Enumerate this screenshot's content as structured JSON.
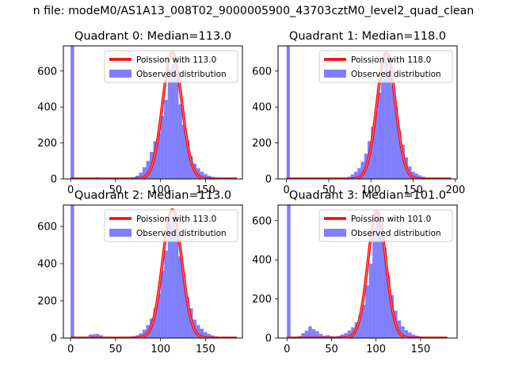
{
  "suptitle": "n file: modeM0/AS1A13_008T02_9000005900_43703cztM0_level2_quad_clean",
  "colors": {
    "poisson": "#ff0000",
    "observed": "#0000ff",
    "axes": "#000000"
  },
  "chart_data": [
    {
      "type": "bar",
      "title": "Quadrant 0: Median=113.0",
      "xlim": [
        -8,
        191
      ],
      "ylim": [
        0,
        740
      ],
      "xticks": [
        0,
        50,
        100,
        150
      ],
      "yticks": [
        0,
        200,
        400,
        600
      ],
      "legend": {
        "placement": "top-right",
        "entries": [
          "Poission with 113.0",
          "Observed distribution"
        ]
      },
      "observed": {
        "name": "Observed distribution",
        "bin_width": 4,
        "bins": [
          [
            0,
            740
          ],
          [
            28,
            10
          ],
          [
            68,
            10
          ],
          [
            72,
            18
          ],
          [
            76,
            35
          ],
          [
            80,
            65
          ],
          [
            84,
            100
          ],
          [
            88,
            150
          ],
          [
            92,
            210
          ],
          [
            96,
            255
          ],
          [
            100,
            350
          ],
          [
            104,
            440
          ],
          [
            108,
            615
          ],
          [
            112,
            640
          ],
          [
            116,
            560
          ],
          [
            120,
            415
          ],
          [
            124,
            300
          ],
          [
            128,
            215
          ],
          [
            132,
            125
          ],
          [
            136,
            85
          ],
          [
            140,
            60
          ],
          [
            144,
            40
          ],
          [
            148,
            28
          ],
          [
            152,
            18
          ],
          [
            156,
            12
          ],
          [
            160,
            8
          ],
          [
            164,
            5
          ],
          [
            168,
            3
          ]
        ]
      },
      "poisson": {
        "name": "Poission with 113.0",
        "mean": 113.0,
        "peak": 705,
        "x_range": [
          0,
          185
        ]
      }
    },
    {
      "type": "bar",
      "title": "Quadrant 1: Median=118.0",
      "xlim": [
        -10,
        202
      ],
      "ylim": [
        0,
        740
      ],
      "xticks": [
        0,
        50,
        100,
        150,
        200
      ],
      "yticks": [
        0,
        200,
        400,
        600
      ],
      "legend": {
        "placement": "top-right",
        "entries": [
          "Poission with 118.0",
          "Observed distribution"
        ]
      },
      "observed": {
        "name": "Observed distribution",
        "bin_width": 4,
        "bins": [
          [
            0,
            740
          ],
          [
            72,
            12
          ],
          [
            76,
            25
          ],
          [
            80,
            40
          ],
          [
            84,
            60
          ],
          [
            88,
            95
          ],
          [
            92,
            140
          ],
          [
            96,
            210
          ],
          [
            100,
            290
          ],
          [
            104,
            380
          ],
          [
            108,
            480
          ],
          [
            112,
            560
          ],
          [
            116,
            670
          ],
          [
            120,
            600
          ],
          [
            124,
            520
          ],
          [
            128,
            400
          ],
          [
            132,
            270
          ],
          [
            136,
            190
          ],
          [
            140,
            120
          ],
          [
            144,
            70
          ],
          [
            148,
            40
          ],
          [
            152,
            30
          ],
          [
            156,
            20
          ],
          [
            160,
            12
          ],
          [
            164,
            7
          ],
          [
            168,
            4
          ],
          [
            172,
            2
          ]
        ]
      },
      "poisson": {
        "name": "Poission with 118.0",
        "mean": 118.0,
        "peak": 705,
        "x_range": [
          0,
          195
        ]
      }
    },
    {
      "type": "bar",
      "title": "Quadrant 2: Median=113.0",
      "xlim": [
        -8,
        191
      ],
      "ylim": [
        0,
        715
      ],
      "xticks": [
        0,
        50,
        100,
        150
      ],
      "yticks": [
        0,
        200,
        400,
        600
      ],
      "legend": {
        "placement": "top-right",
        "entries": [
          "Poission with 113.0",
          "Observed distribution"
        ]
      },
      "observed": {
        "name": "Observed distribution",
        "bin_width": 4,
        "bins": [
          [
            0,
            715
          ],
          [
            20,
            18
          ],
          [
            24,
            20
          ],
          [
            28,
            22
          ],
          [
            32,
            15
          ],
          [
            36,
            5
          ],
          [
            40,
            4
          ],
          [
            44,
            3
          ],
          [
            48,
            3
          ],
          [
            52,
            4
          ],
          [
            56,
            5
          ],
          [
            60,
            6
          ],
          [
            64,
            8
          ],
          [
            68,
            10
          ],
          [
            72,
            15
          ],
          [
            76,
            25
          ],
          [
            80,
            45
          ],
          [
            84,
            70
          ],
          [
            88,
            105
          ],
          [
            92,
            160
          ],
          [
            96,
            240
          ],
          [
            100,
            360
          ],
          [
            104,
            470
          ],
          [
            108,
            620
          ],
          [
            112,
            650
          ],
          [
            116,
            590
          ],
          [
            120,
            440
          ],
          [
            124,
            340
          ],
          [
            128,
            220
          ],
          [
            132,
            160
          ],
          [
            136,
            100
          ],
          [
            140,
            70
          ],
          [
            144,
            50
          ],
          [
            148,
            32
          ],
          [
            152,
            22
          ],
          [
            156,
            14
          ],
          [
            160,
            9
          ],
          [
            164,
            5
          ]
        ]
      },
      "poisson": {
        "name": "Poission with 113.0",
        "mean": 113.0,
        "peak": 690,
        "x_range": [
          0,
          185
        ]
      }
    },
    {
      "type": "bar",
      "title": "Quadrant 3: Median=101.0",
      "xlim": [
        -10,
        191
      ],
      "ylim": [
        0,
        680
      ],
      "xticks": [
        0,
        50,
        100,
        150
      ],
      "yticks": [
        0,
        200,
        400,
        600
      ],
      "legend": {
        "placement": "top-right",
        "entries": [
          "Poission with 101.0",
          "Observed distribution"
        ]
      },
      "observed": {
        "name": "Observed distribution",
        "bin_width": 4,
        "bins": [
          [
            0,
            680
          ],
          [
            12,
            10
          ],
          [
            16,
            25
          ],
          [
            20,
            38
          ],
          [
            24,
            60
          ],
          [
            28,
            45
          ],
          [
            32,
            35
          ],
          [
            36,
            20
          ],
          [
            40,
            12
          ],
          [
            44,
            15
          ],
          [
            48,
            10
          ],
          [
            52,
            8
          ],
          [
            56,
            12
          ],
          [
            60,
            18
          ],
          [
            64,
            25
          ],
          [
            68,
            38
          ],
          [
            72,
            55
          ],
          [
            76,
            80
          ],
          [
            80,
            115
          ],
          [
            84,
            170
          ],
          [
            88,
            270
          ],
          [
            92,
            380
          ],
          [
            96,
            560
          ],
          [
            100,
            650
          ],
          [
            104,
            600
          ],
          [
            108,
            460
          ],
          [
            112,
            320
          ],
          [
            116,
            220
          ],
          [
            120,
            140
          ],
          [
            124,
            90
          ],
          [
            128,
            60
          ],
          [
            132,
            40
          ],
          [
            136,
            28
          ],
          [
            140,
            18
          ],
          [
            144,
            12
          ],
          [
            148,
            8
          ],
          [
            152,
            5
          ]
        ]
      },
      "poisson": {
        "name": "Poission with 101.0",
        "mean": 101.0,
        "peak": 650,
        "x_range": [
          0,
          180
        ]
      }
    }
  ]
}
